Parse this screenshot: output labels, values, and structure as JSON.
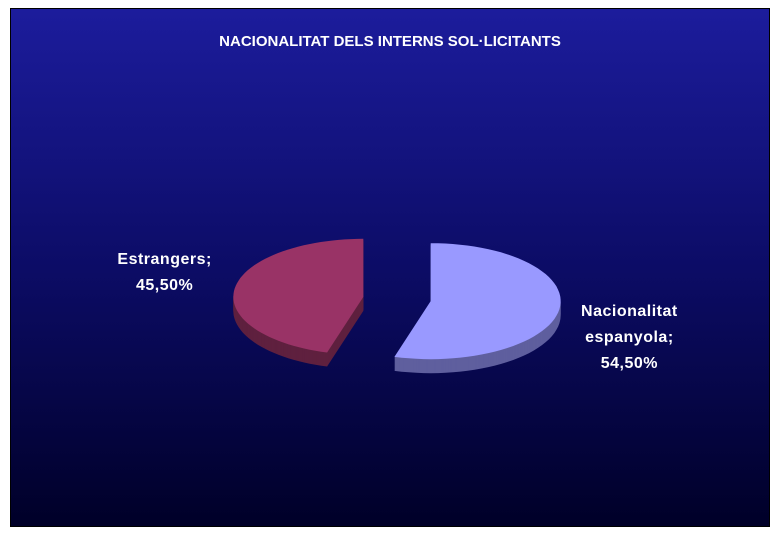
{
  "chart_data": {
    "type": "pie3d",
    "title": "NACIONALITAT DELS INTERNS SOL·LICITANTS",
    "categories": [
      "Nacionalitat espanyola",
      "Estrangers"
    ],
    "values": [
      54.5,
      45.5
    ],
    "value_labels": [
      "54,50%",
      "45,50%"
    ],
    "separator": ";",
    "colors": [
      "#9999ff",
      "#993366"
    ]
  }
}
